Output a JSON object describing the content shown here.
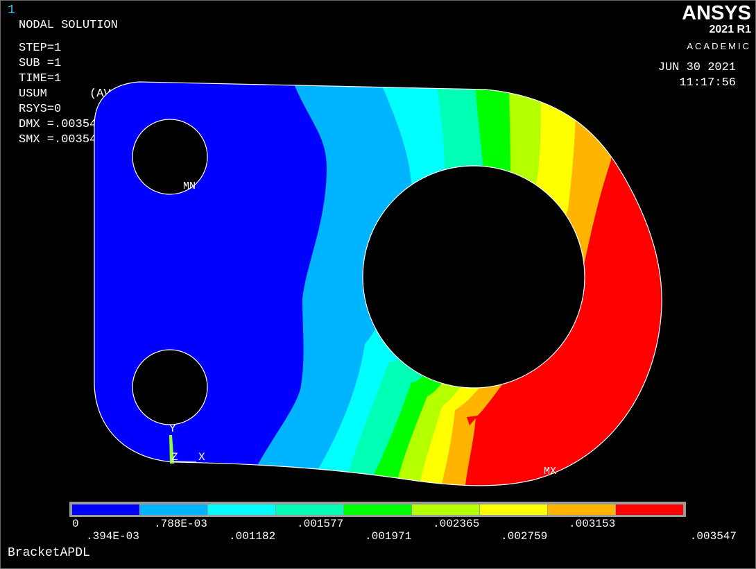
{
  "window": {
    "number": "1"
  },
  "header": {
    "title": "NODAL SOLUTION",
    "step": "STEP=1",
    "sub": "SUB =1",
    "time": "TIME=1",
    "result": "USUM      (AVG)",
    "rsys": "RSYS=0",
    "dmx": "DMX =.003547",
    "smx": "SMX =.003547"
  },
  "logo": {
    "name": "ANSYS",
    "version": "2021 R1",
    "edition": "ACADEMIC"
  },
  "datetime": {
    "date": "JUN 30 2021",
    "time": "11:17:56"
  },
  "markers": {
    "min": "MN",
    "max": "MX"
  },
  "triad": {
    "y": "Y",
    "z": "Z",
    "x": "X"
  },
  "legend": {
    "colors": [
      "#0000ff",
      "#00b4ff",
      "#00ffff",
      "#00ffb4",
      "#00ff00",
      "#b4ff00",
      "#ffff00",
      "#ffb400",
      "#ff0000"
    ],
    "labels": [
      "0",
      ".394E-03",
      ".788E-03",
      ".001182",
      ".001577",
      ".001971",
      ".002365",
      ".002759",
      ".003153",
      ".003547"
    ]
  },
  "footer": {
    "jobname": "BracketAPDL"
  }
}
